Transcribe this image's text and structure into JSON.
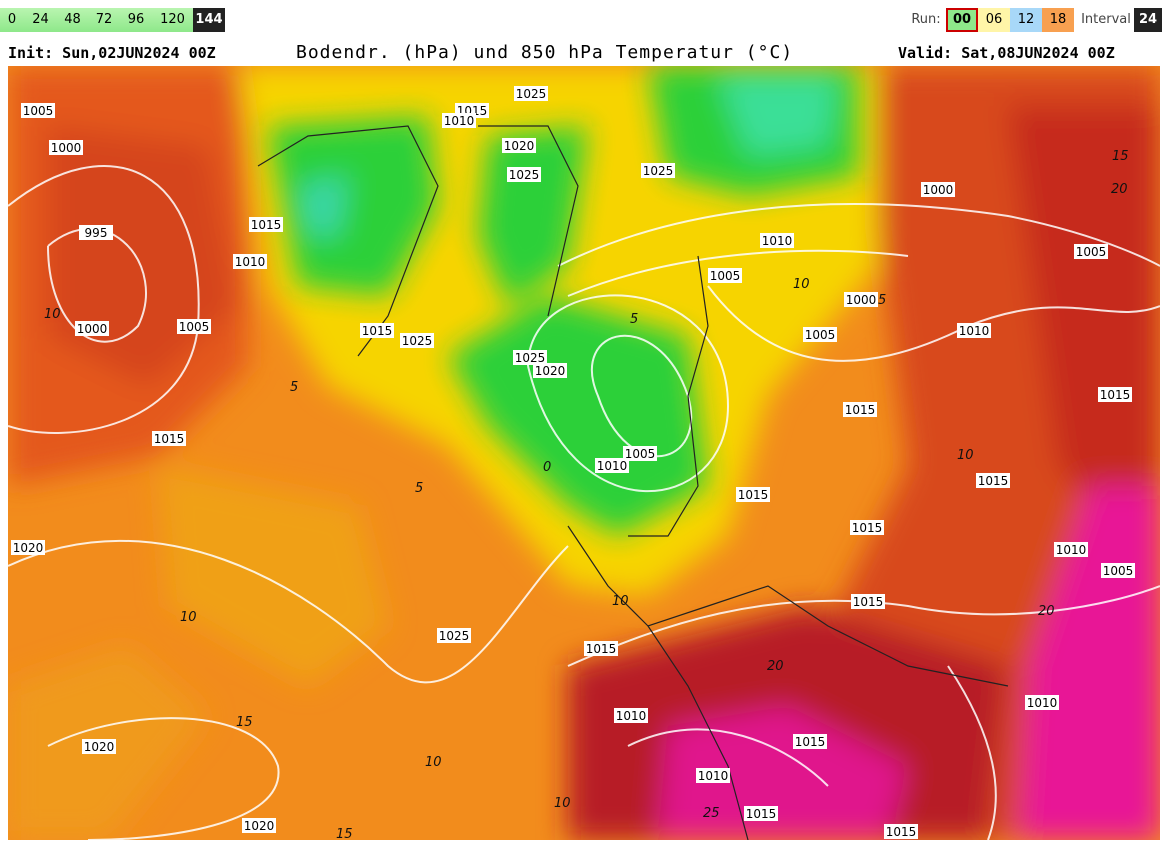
{
  "forecast_hours": [
    "0",
    "24",
    "48",
    "72",
    "96",
    "120",
    "144"
  ],
  "run": {
    "label": "Run:",
    "options": [
      "00",
      "06",
      "12",
      "18"
    ]
  },
  "interval": {
    "label": "Interval",
    "value": "24"
  },
  "header": {
    "init": "Init: Sun,02JUN2024 00Z",
    "title": "Bodendr. (hPa) und 850 hPa Temperatur (°C)",
    "valid": "Valid: Sat,08JUN2024 00Z"
  },
  "map": {
    "isobar_labels": [
      "1005",
      "1000",
      "995",
      "1015",
      "1010",
      "1000",
      "1005",
      "1015",
      "1015",
      "1025",
      "1015",
      "1010",
      "1025",
      "1020",
      "1025",
      "1025",
      "1010",
      "1005",
      "1000",
      "1005",
      "1000",
      "1010",
      "1005",
      "1025",
      "1020",
      "1015",
      "1015",
      "1010",
      "1005",
      "1015",
      "1015",
      "1015",
      "1020",
      "1010",
      "1005",
      "1015",
      "1025",
      "1015",
      "1010",
      "1010",
      "1020",
      "1015",
      "1010",
      "1015",
      "1020",
      "1015"
    ],
    "temperature_labels": [
      "10",
      "5",
      "10",
      "15",
      "10",
      "10",
      "15",
      "10",
      "20",
      "20",
      "15",
      "20",
      "10",
      "5",
      "5",
      "0",
      "5",
      "10",
      "25"
    ]
  }
}
